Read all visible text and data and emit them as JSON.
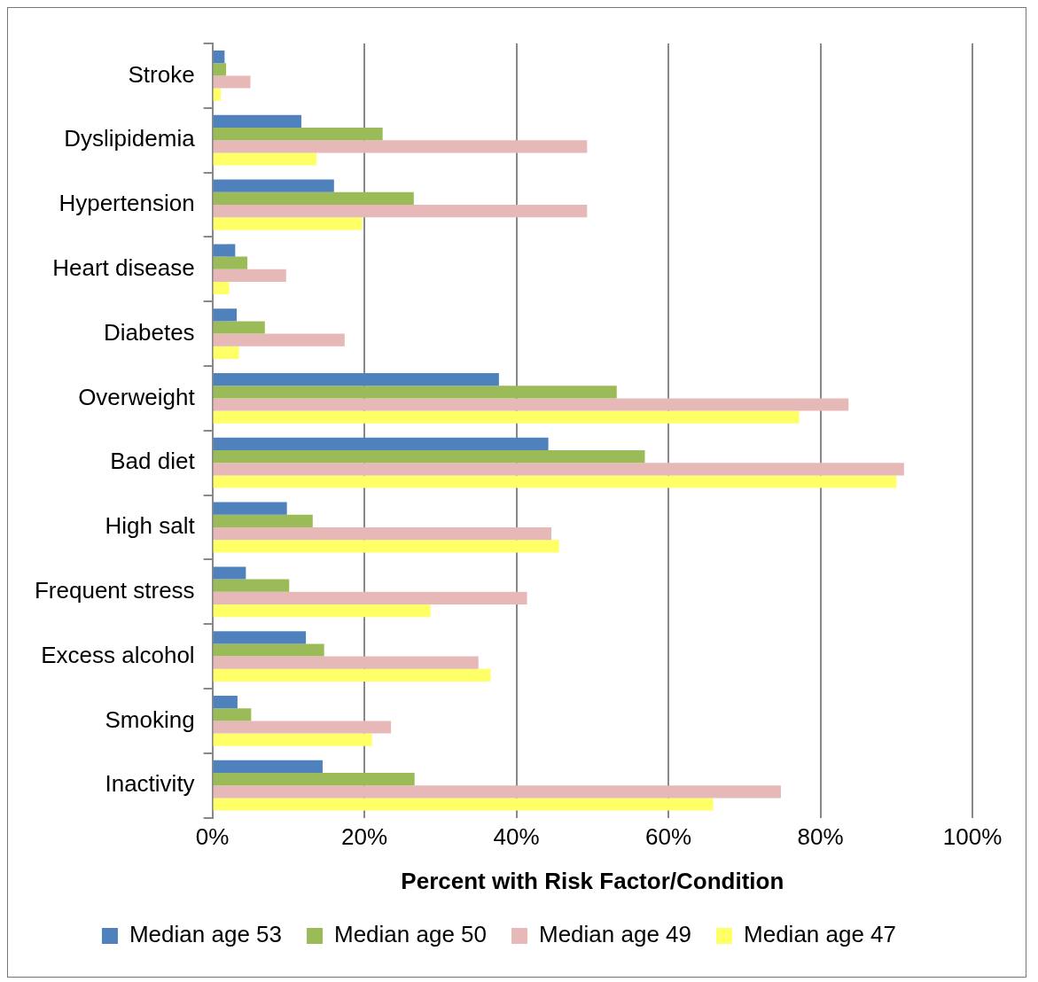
{
  "chart_data": {
    "type": "bar",
    "orientation": "horizontal",
    "xlabel": "Percent with Risk Factor/Condition",
    "categories": [
      "Stroke",
      "Dyslipidemia",
      "Hypertension",
      "Heart disease",
      "Diabetes",
      "Overweight",
      "Bad diet",
      "High salt",
      "Frequent stress",
      "Excess alcohol",
      "Smoking",
      "Inactivity"
    ],
    "series": [
      {
        "name": "Median age 53",
        "color": "#4f81bd",
        "values": [
          1.6,
          11.7,
          16.0,
          3.0,
          3.2,
          37.7,
          44.2,
          9.8,
          4.4,
          12.3,
          3.3,
          14.5
        ]
      },
      {
        "name": "Median age 50",
        "color": "#9bbb59",
        "values": [
          1.8,
          22.4,
          26.5,
          4.6,
          6.9,
          53.2,
          56.9,
          13.2,
          10.1,
          14.7,
          5.1,
          26.6
        ]
      },
      {
        "name": "Median age 49",
        "color": "#e6b9b8",
        "values": [
          5.0,
          49.3,
          49.3,
          9.7,
          17.4,
          83.7,
          91.0,
          44.6,
          41.4,
          35.0,
          23.5,
          74.8
        ]
      },
      {
        "name": "Median age 47",
        "color": "#ffff66",
        "values": [
          1.1,
          13.7,
          19.7,
          2.2,
          3.5,
          77.2,
          90.0,
          45.6,
          28.7,
          36.6,
          21.0,
          65.9
        ]
      }
    ],
    "xlim": [
      0,
      100
    ],
    "xticks": [
      {
        "value": 0,
        "label": "0%"
      },
      {
        "value": 20,
        "label": "20%"
      },
      {
        "value": 40,
        "label": "40%"
      },
      {
        "value": 60,
        "label": "60%"
      },
      {
        "value": 80,
        "label": "80%"
      },
      {
        "value": 100,
        "label": "100%"
      }
    ],
    "grid": "x",
    "legend": "bottom"
  }
}
